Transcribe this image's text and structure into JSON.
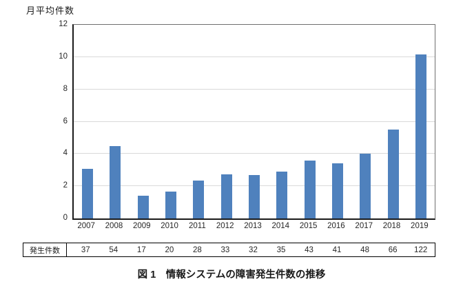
{
  "chart_data": {
    "type": "bar",
    "title": "",
    "ylabel": "月平均件数",
    "xlabel": "",
    "categories": [
      "2007",
      "2008",
      "2009",
      "2010",
      "2011",
      "2012",
      "2013",
      "2014",
      "2015",
      "2016",
      "2017",
      "2018",
      "2019"
    ],
    "values": [
      3.08,
      4.5,
      1.42,
      1.67,
      2.33,
      2.75,
      2.67,
      2.92,
      3.58,
      3.42,
      4.0,
      5.5,
      10.17
    ],
    "ylim": [
      0,
      12
    ],
    "yticks": [
      0,
      2,
      4,
      6,
      8,
      10,
      12
    ],
    "grid": true,
    "legend": false,
    "bar_color": "#4F81BD",
    "gridline_color": "#D9D9D9"
  },
  "table": {
    "row_label": "発生件数",
    "values": [
      "37",
      "54",
      "17",
      "20",
      "28",
      "33",
      "32",
      "35",
      "43",
      "41",
      "48",
      "66",
      "122"
    ]
  },
  "caption": "図 1　情報システムの障害発生件数の推移"
}
